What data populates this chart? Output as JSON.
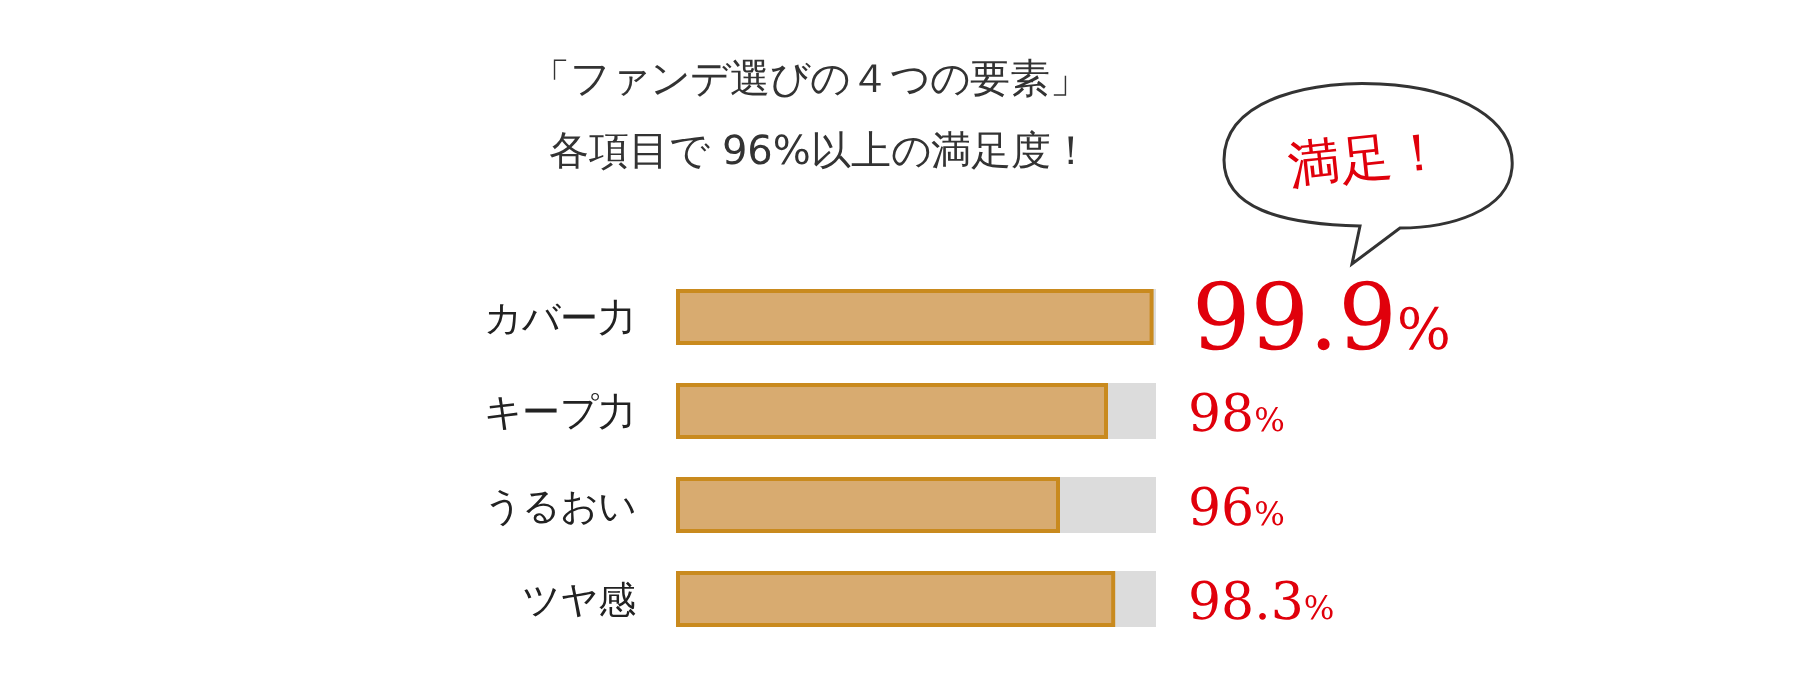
{
  "chart_data": {
    "type": "bar",
    "orientation": "horizontal",
    "title": "「ファンデ選びの４つの要素」",
    "subtitle": "各項目で 96%以上の満足度！",
    "categories": [
      "カバー力",
      "キープ力",
      "うるおい",
      "ツヤ感"
    ],
    "values": [
      99.9,
      98,
      96,
      98.3
    ],
    "value_labels": [
      "99.9%",
      "98%",
      "96%",
      "98.3%"
    ],
    "color": "#d8ab70",
    "xlim": [
      80,
      100
    ],
    "annotations": [
      "満足！"
    ]
  }
}
